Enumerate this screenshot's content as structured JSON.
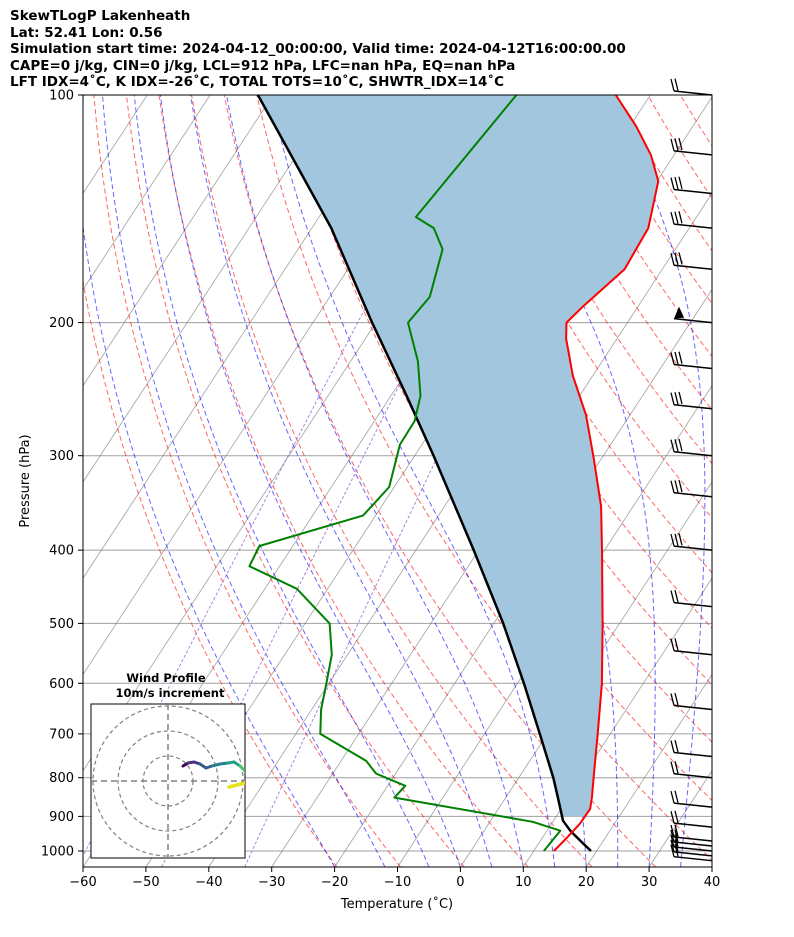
{
  "header": {
    "line1": "SkewTLogP Lakenheath",
    "line2": "Lat: 52.41   Lon: 0.56",
    "line3": "Simulation start time: 2024-04-12_00:00:00, Valid time: 2024-04-12T16:00:00.00",
    "line4": "CAPE=0 j/kg, CIN=0 j/kg, LCL=912 hPa, LFC=nan hPa, EQ=nan hPa",
    "line5": "LFT IDX=4˚C, K IDX=-26˚C, TOTAL TOTS=10˚C, SHWTR_IDX=14˚C"
  },
  "hodograph": {
    "title1": "Wind Profile",
    "title2": "10m/s increment"
  },
  "chart_data": {
    "type": "line",
    "subtype": "skew-T log-P",
    "xlabel": "Temperature (˚C)",
    "ylabel": "Pressure (hPa)",
    "xlim": [
      -60,
      40
    ],
    "ylim": [
      1050,
      100
    ],
    "yscale": "log",
    "x_ticks": [
      "−60",
      "−50",
      "−40",
      "−30",
      "−20",
      "−10",
      "0",
      "10",
      "20",
      "30",
      "40"
    ],
    "y_ticks": [
      "100",
      "200",
      "300",
      "400",
      "500",
      "600",
      "700",
      "800",
      "900",
      "1000"
    ],
    "colors": {
      "temperature": "#ff0000",
      "dewpoint": "#008000",
      "parcel": "#000000",
      "shading": "#a1c6de",
      "dry_adiabats": "#ff0000",
      "moist_adiabats": "#0000ff",
      "mixing_ratio": "#9966cc",
      "isotherms": "#808080"
    },
    "series": [],
    "temperature_profile": [
      [
        1000,
        13.2
      ],
      [
        960,
        13.9
      ],
      [
        920,
        14.5
      ],
      [
        880,
        14.6
      ],
      [
        850,
        13.7
      ],
      [
        800,
        11.9
      ],
      [
        700,
        8.0
      ],
      [
        600,
        3.4
      ],
      [
        500,
        -2.7
      ],
      [
        400,
        -10.4
      ],
      [
        350,
        -15.1
      ],
      [
        300,
        -21.6
      ],
      [
        265,
        -27.0
      ],
      [
        235,
        -33.2
      ],
      [
        210,
        -38.1
      ],
      [
        200,
        -39.7
      ],
      [
        190,
        -38.7
      ],
      [
        170,
        -36.0
      ],
      [
        150,
        -36.5
      ],
      [
        130,
        -39.8
      ],
      [
        120,
        -43.7
      ],
      [
        110,
        -49.0
      ],
      [
        100,
        -55.5
      ]
    ],
    "dewpoint_profile": [
      [
        1000,
        11.6
      ],
      [
        940,
        12.1
      ],
      [
        915,
        6.8
      ],
      [
        850,
        -17.7
      ],
      [
        820,
        -17.2
      ],
      [
        790,
        -23.1
      ],
      [
        760,
        -26.0
      ],
      [
        700,
        -36.1
      ],
      [
        650,
        -38.5
      ],
      [
        600,
        -40.4
      ],
      [
        550,
        -42.5
      ],
      [
        500,
        -46.1
      ],
      [
        450,
        -54.9
      ],
      [
        420,
        -64.8
      ],
      [
        395,
        -65.3
      ],
      [
        360,
        -52.0
      ],
      [
        330,
        -50.8
      ],
      [
        290,
        -53.5
      ],
      [
        270,
        -53.6
      ],
      [
        250,
        -55.3
      ],
      [
        225,
        -59.3
      ],
      [
        200,
        -64.9
      ],
      [
        185,
        -64.1
      ],
      [
        160,
        -67.0
      ],
      [
        150,
        -70.6
      ],
      [
        145,
        -74.6
      ],
      [
        100,
        -71.3
      ]
    ],
    "parcel_profile": [
      [
        1000,
        19.1
      ],
      [
        970,
        16.4
      ],
      [
        940,
        13.7
      ],
      [
        912,
        11.5
      ],
      [
        850,
        8.3
      ],
      [
        800,
        5.5
      ],
      [
        700,
        -1.2
      ],
      [
        600,
        -9.0
      ],
      [
        500,
        -18.5
      ],
      [
        400,
        -30.8
      ],
      [
        300,
        -47.0
      ],
      [
        250,
        -57.5
      ],
      [
        200,
        -70.6
      ],
      [
        150,
        -86.9
      ],
      [
        100,
        -112.4
      ]
    ],
    "wind_barbs_hPa": [
      1030,
      1015,
      1000,
      985,
      970,
      930,
      875,
      800,
      750,
      650,
      550,
      475,
      400,
      340,
      300,
      260,
      230,
      200,
      170,
      150,
      135,
      120,
      100
    ],
    "hodograph_rings_ms": [
      10,
      20,
      30
    ]
  }
}
